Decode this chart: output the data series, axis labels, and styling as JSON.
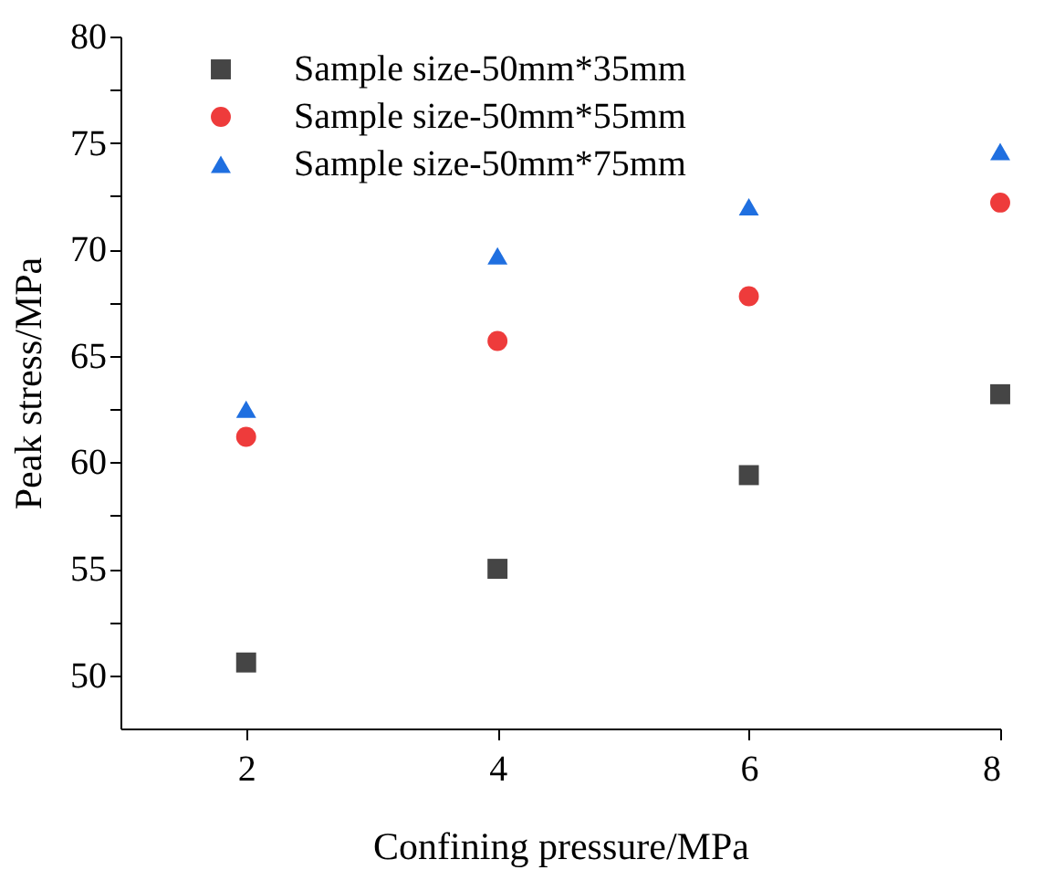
{
  "chart_data": {
    "type": "scatter",
    "xlabel": "Confining pressure/MPa",
    "ylabel": "Peak stress/MPa",
    "x": [
      2,
      4,
      6,
      8
    ],
    "series": [
      {
        "name": "Sample size-50mm*35mm",
        "color": "#454545",
        "marker": "square",
        "values": [
          50.6,
          55.0,
          59.4,
          63.2
        ]
      },
      {
        "name": "Sample size-50mm*55mm",
        "color": "#ee3b3b",
        "marker": "circle",
        "values": [
          61.2,
          65.7,
          67.8,
          72.2
        ]
      },
      {
        "name": "Sample size-50mm*75mm",
        "color": "#1f6fe0",
        "marker": "triangle",
        "values": [
          62.5,
          69.7,
          72.0,
          74.6
        ]
      }
    ],
    "xlim": [
      1,
      8
    ],
    "xticks": [
      2,
      4,
      6,
      8
    ],
    "ylim": [
      47.5,
      80
    ],
    "yticks": [
      50,
      {
        "value": 52.5,
        "label": null
      },
      55,
      {
        "value": 57.5,
        "label": null
      },
      60,
      {
        "value": 62.5,
        "label": null
      },
      65,
      {
        "value": 67.5,
        "label": null
      },
      70,
      {
        "value": 72.5,
        "label": null
      },
      75,
      {
        "value": 77.5,
        "label": null
      },
      80
    ],
    "grid": false,
    "legend": "top left"
  }
}
